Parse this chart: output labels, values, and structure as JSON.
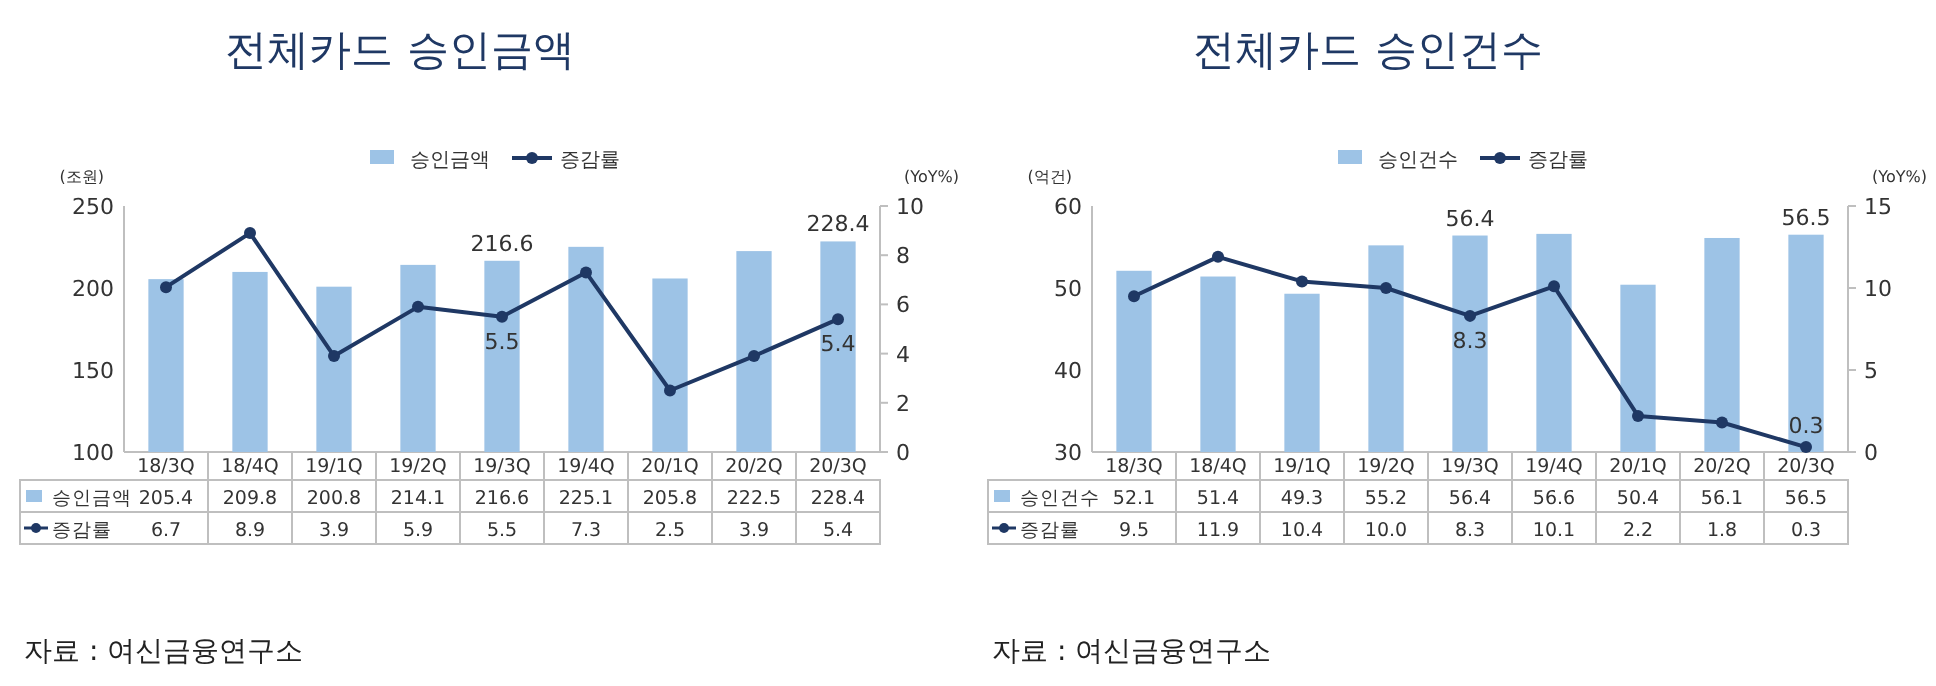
{
  "chart_data": [
    {
      "type": "bar",
      "title": "전체카드 승인금액",
      "ylabel": "(조원)",
      "y2label": "(YoY%)",
      "categories": [
        "18/3Q",
        "18/4Q",
        "19/1Q",
        "19/2Q",
        "19/3Q",
        "19/4Q",
        "20/1Q",
        "20/2Q",
        "20/3Q"
      ],
      "series": [
        {
          "name": "승인금액",
          "type": "bar",
          "color": "#9dc3e6",
          "values": [
            205.4,
            209.8,
            200.8,
            214.1,
            216.6,
            225.1,
            205.8,
            222.5,
            228.4
          ]
        },
        {
          "name": "증감률",
          "type": "line",
          "axis": "y2",
          "color": "#1f3864",
          "marker": "circle",
          "values": [
            6.7,
            8.9,
            3.9,
            5.9,
            5.5,
            7.3,
            2.5,
            3.9,
            5.4
          ],
          "value_labels": [
            "6.7",
            "8.9",
            "3.9",
            "5.9",
            "5.5",
            "7.3",
            "2.5",
            "3.9",
            "5.4"
          ]
        }
      ],
      "ylim": [
        100,
        250
      ],
      "yticks": [
        100,
        150,
        200,
        250
      ],
      "y2lim": [
        0,
        10
      ],
      "y2ticks": [
        0,
        2,
        4,
        6,
        8,
        10
      ],
      "legend": "top",
      "data_labels": true,
      "annotations": [
        {
          "text": "216.6",
          "x": "19/3Q",
          "y": 216.6
        },
        {
          "text": "228.4",
          "x": "20/3Q",
          "y": 228.4
        },
        "5.5",
        "5.4",
        "자료 : 여신금융연구소"
      ]
    },
    {
      "type": "bar",
      "title": "전체카드 승인건수",
      "ylabel": "(억건)",
      "y2label": "(YoY%)",
      "categories": [
        "18/3Q",
        "18/4Q",
        "19/1Q",
        "19/2Q",
        "19/3Q",
        "19/4Q",
        "20/1Q",
        "20/2Q",
        "20/3Q"
      ],
      "series": [
        {
          "name": "승인건수",
          "type": "bar",
          "color": "#9dc3e6",
          "values": [
            52.1,
            51.4,
            49.3,
            55.2,
            56.4,
            56.6,
            50.4,
            56.1,
            56.5
          ]
        },
        {
          "name": "증감률",
          "type": "line",
          "axis": "y2",
          "color": "#1f3864",
          "marker": "circle",
          "values": [
            9.5,
            11.9,
            10.4,
            10.0,
            8.3,
            10.1,
            2.2,
            1.8,
            0.3
          ],
          "value_labels": [
            "9.5",
            "11.9",
            "10.4",
            "10.0",
            "8.3",
            "10.1",
            "2.2",
            "1.8",
            "0.3"
          ]
        }
      ],
      "ylim": [
        30,
        60
      ],
      "yticks": [
        30,
        40,
        50,
        60
      ],
      "y2lim": [
        0,
        15
      ],
      "y2ticks": [
        0,
        5,
        10,
        15
      ],
      "legend": "top",
      "data_labels": true,
      "annotations": [
        {
          "text": "56.4",
          "x": "19/3Q",
          "y": 56.4
        },
        {
          "text": "56.5",
          "x": "20/3Q",
          "y": 56.5
        },
        "8.3",
        "0.3",
        "자료 : 여신금융연구소"
      ]
    }
  ]
}
